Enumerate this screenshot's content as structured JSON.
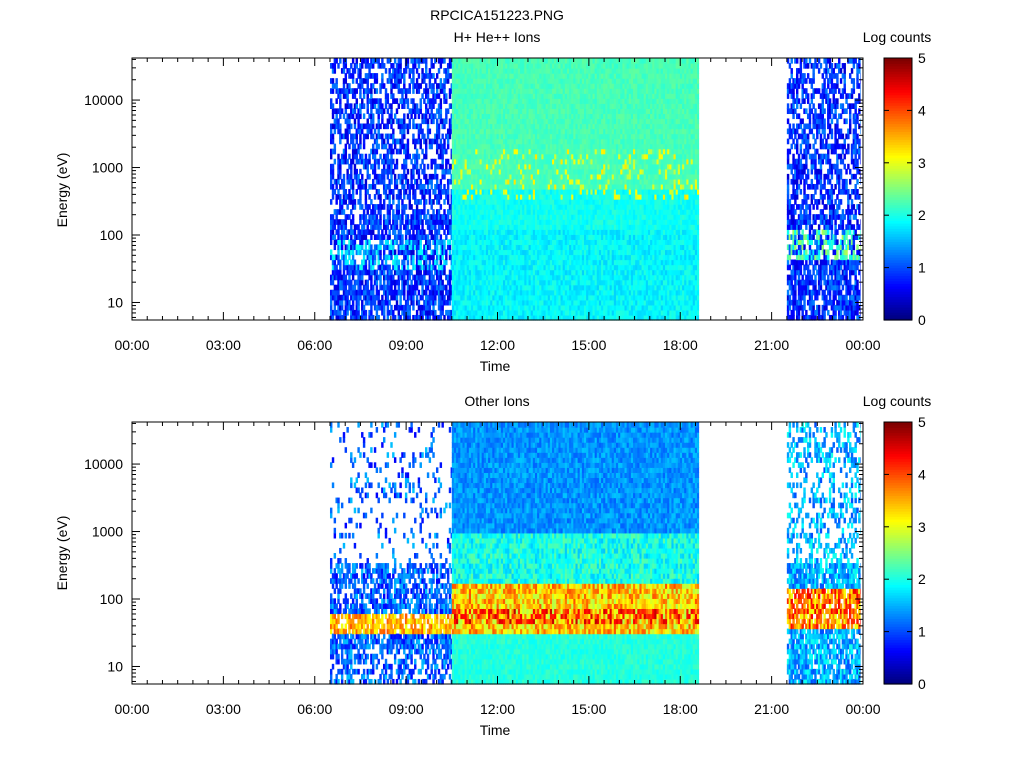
{
  "page_title": "RPCICA151223.PNG",
  "colors": {
    "jet": [
      "#00007f",
      "#0000ff",
      "#007fff",
      "#00ffff",
      "#7fff7f",
      "#ffff00",
      "#ff7f00",
      "#ff0000",
      "#7f0000"
    ]
  },
  "chart_data": [
    {
      "type": "heatmap",
      "title": "H+ He++ Ions",
      "xlabel": "Time",
      "ylabel": "Energy (eV)",
      "yscale": "log",
      "ylim": [
        5.5,
        42000
      ],
      "xlim_hours": [
        0,
        24
      ],
      "x_ticks": [
        "00:00",
        "03:00",
        "06:00",
        "09:00",
        "12:00",
        "15:00",
        "18:00",
        "21:00",
        "00:00"
      ],
      "y_ticks": [
        {
          "value": 10,
          "label": "10"
        },
        {
          "value": 100,
          "label": "100"
        },
        {
          "value": 1000,
          "label": "1000"
        },
        {
          "value": 10000,
          "label": "10000"
        }
      ],
      "colorbar": {
        "label": "Log counts",
        "min": 0,
        "max": 5,
        "ticks": [
          "0",
          "1",
          "2",
          "3",
          "4",
          "5"
        ]
      },
      "data_intervals_hours": [
        {
          "start": 6.5,
          "end": 10.5,
          "pattern": "sparse noise, Log counts ~0–1"
        },
        {
          "start": 10.5,
          "end": 18.6,
          "pattern": "uniform background, Log counts ~2–3"
        },
        {
          "start": 21.5,
          "end": 23.9,
          "pattern": "sparse noise with band near 50–100 eV"
        }
      ]
    },
    {
      "type": "heatmap",
      "title": "Other Ions",
      "xlabel": "Time",
      "ylabel": "Energy (eV)",
      "yscale": "log",
      "ylim": [
        5.5,
        42000
      ],
      "xlim_hours": [
        0,
        24
      ],
      "x_ticks": [
        "00:00",
        "03:00",
        "06:00",
        "09:00",
        "12:00",
        "15:00",
        "18:00",
        "21:00",
        "00:00"
      ],
      "y_ticks": [
        {
          "value": 10,
          "label": "10"
        },
        {
          "value": 100,
          "label": "100"
        },
        {
          "value": 1000,
          "label": "1000"
        },
        {
          "value": 10000,
          "label": "10000"
        }
      ],
      "colorbar": {
        "label": "Log counts",
        "min": 0,
        "max": 5,
        "ticks": [
          "0",
          "1",
          "2",
          "3",
          "4",
          "5"
        ]
      },
      "data_intervals_hours": [
        {
          "start": 6.5,
          "end": 10.5,
          "pattern": "band at 30–60 eV, Log counts ~3–4"
        },
        {
          "start": 10.5,
          "end": 18.6,
          "pattern": "intense band at 40–80 eV, Log counts ~4–5"
        },
        {
          "start": 21.5,
          "end": 23.9,
          "pattern": "intense band at 40–150 eV, Log counts ~4–5"
        }
      ]
    }
  ]
}
